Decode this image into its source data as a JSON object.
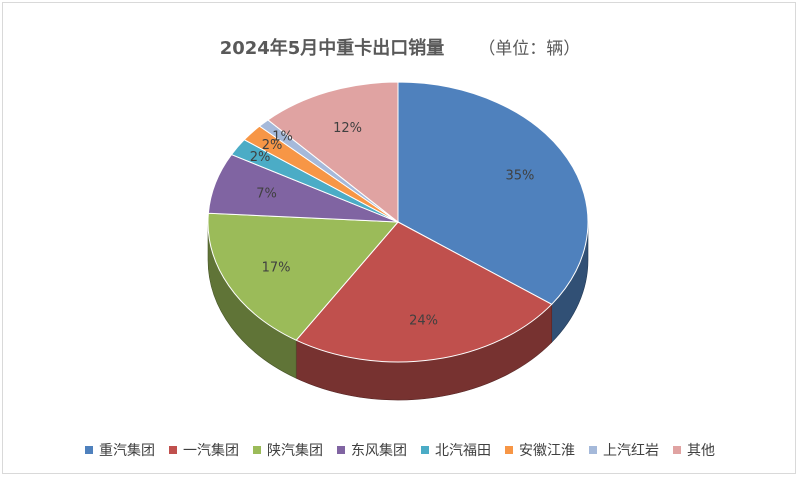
{
  "title": "2024年5月中重卡出口销量",
  "unit_label": "（单位：辆）",
  "chart_data": {
    "type": "pie",
    "title": "2024年5月中重卡出口销量",
    "subtitle": "（单位：辆）",
    "style": "3d",
    "categories": [
      "重汽集团",
      "一汽集团",
      "陕汽集团",
      "东风集团",
      "北汽福田",
      "安徽江淮",
      "上汽红岩",
      "其他"
    ],
    "values": [
      35,
      24,
      17,
      7,
      2,
      2,
      1,
      12
    ],
    "labels": [
      "35%",
      "24%",
      "17%",
      "7%",
      "2%",
      "2%",
      "1%",
      "12%"
    ],
    "colors": [
      "#4F81BD",
      "#C0504D",
      "#9BBB59",
      "#8064A2",
      "#4BACC6",
      "#F79646",
      "#A5B9DA",
      "#E0A3A2"
    ],
    "legend_position": "bottom"
  }
}
